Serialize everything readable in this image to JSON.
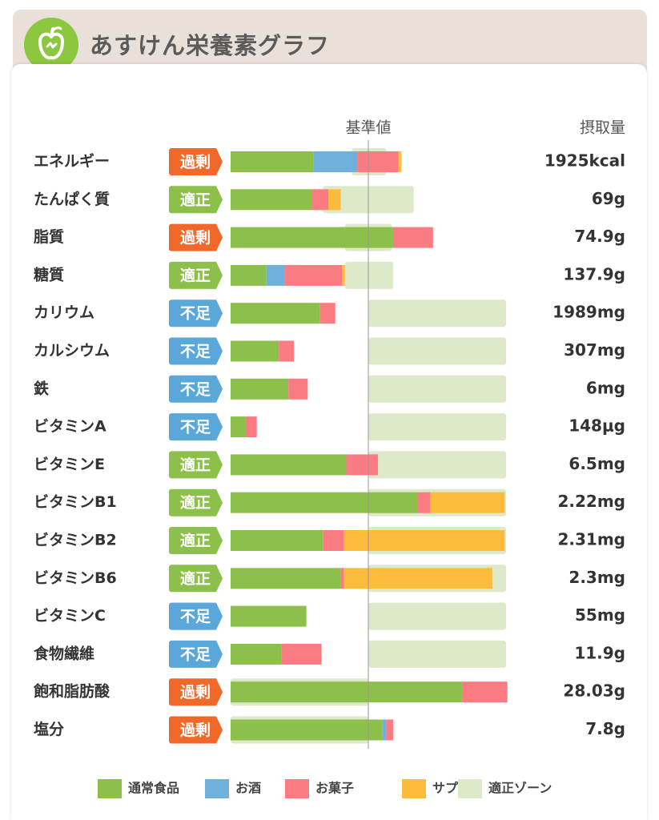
{
  "app": {
    "title": "あすけん栄養素グラフ",
    "logo_icon": "apple-icon"
  },
  "colors": {
    "normal_food": "#8cc04b",
    "alcohol": "#6fb0dc",
    "snacks": "#fa7b82",
    "supplement": "#fbbc3d",
    "zone": "#dde9c9",
    "excess": "#f0682a",
    "adequate": "#8cc04b",
    "deficient": "#5aa7d9"
  },
  "chart_data": {
    "type": "bar",
    "orientation": "horizontal-stacked",
    "title": "あすけん栄養素グラフ",
    "reference_label": "基準値",
    "intake_header": "摂取量",
    "scale_unit": "percent of reference value",
    "reference_value": 100,
    "xlim": [
      0,
      200
    ],
    "legend": [
      {
        "key": "normal_food",
        "label": "通常食品"
      },
      {
        "key": "alcohol",
        "label": "お酒"
      },
      {
        "key": "snacks",
        "label": "お菓子"
      },
      {
        "key": "supplement",
        "label": "サプリ"
      },
      {
        "key": "zone",
        "label": "適正ゾーン"
      }
    ],
    "legend_position": "bottom",
    "nutrients": [
      {
        "name": "エネルギー",
        "status": "過剰",
        "status_key": "excess",
        "intake": "1925kcal",
        "segments": {
          "normal_food": 60,
          "alcohol": 32,
          "snacks": 30,
          "supplement": 2
        },
        "zone": [
          88,
          113
        ]
      },
      {
        "name": "たんぱく質",
        "status": "適正",
        "status_key": "adequate",
        "intake": "69g",
        "segments": {
          "normal_food": 59,
          "alcohol": 0,
          "snacks": 12,
          "supplement": 9
        },
        "zone": [
          67,
          133
        ]
      },
      {
        "name": "脂質",
        "status": "過剰",
        "status_key": "excess",
        "intake": "74.9g",
        "segments": {
          "normal_food": 118,
          "alcohol": 0,
          "snacks": 29,
          "supplement": 0
        },
        "zone": [
          83,
          117
        ]
      },
      {
        "name": "糖質",
        "status": "適正",
        "status_key": "adequate",
        "intake": "137.9g",
        "segments": {
          "normal_food": 26,
          "alcohol": 13,
          "snacks": 42,
          "supplement": 2
        },
        "zone": [
          83,
          118
        ]
      },
      {
        "name": "カリウム",
        "status": "不足",
        "status_key": "deficient",
        "intake": "1989mg",
        "segments": {
          "normal_food": 65,
          "alcohol": 0,
          "snacks": 11,
          "supplement": 0
        },
        "zone": [
          100,
          200
        ]
      },
      {
        "name": "カルシウム",
        "status": "不足",
        "status_key": "deficient",
        "intake": "307mg",
        "segments": {
          "normal_food": 35,
          "alcohol": 0,
          "snacks": 11,
          "supplement": 0
        },
        "zone": [
          100,
          200
        ]
      },
      {
        "name": "鉄",
        "status": "不足",
        "status_key": "deficient",
        "intake": "6mg",
        "segments": {
          "normal_food": 42,
          "alcohol": 0,
          "snacks": 14,
          "supplement": 0
        },
        "zone": [
          100,
          200
        ]
      },
      {
        "name": "ビタミンA",
        "status": "不足",
        "status_key": "deficient",
        "intake": "148μg",
        "segments": {
          "normal_food": 11,
          "alcohol": 0,
          "snacks": 8,
          "supplement": 0
        },
        "zone": [
          100,
          200
        ]
      },
      {
        "name": "ビタミンE",
        "status": "適正",
        "status_key": "adequate",
        "intake": "6.5mg",
        "segments": {
          "normal_food": 84,
          "alcohol": 0,
          "snacks": 23,
          "supplement": 0
        },
        "zone": [
          100,
          200
        ]
      },
      {
        "name": "ビタミンB1",
        "status": "適正",
        "status_key": "adequate",
        "intake": "2.22mg",
        "segments": {
          "normal_food": 136,
          "alcohol": 0,
          "snacks": 9,
          "supplement": 54
        },
        "zone": [
          100,
          200
        ]
      },
      {
        "name": "ビタミンB2",
        "status": "適正",
        "status_key": "adequate",
        "intake": "2.31mg",
        "segments": {
          "normal_food": 67,
          "alcohol": 0,
          "snacks": 15,
          "supplement": 117
        },
        "zone": [
          100,
          200
        ]
      },
      {
        "name": "ビタミンB6",
        "status": "適正",
        "status_key": "adequate",
        "intake": "2.3mg",
        "segments": {
          "normal_food": 80,
          "alcohol": 0,
          "snacks": 2,
          "supplement": 108
        },
        "zone": [
          100,
          200
        ]
      },
      {
        "name": "ビタミンC",
        "status": "不足",
        "status_key": "deficient",
        "intake": "55mg",
        "segments": {
          "normal_food": 55,
          "alcohol": 0,
          "snacks": 0,
          "supplement": 0
        },
        "zone": [
          100,
          200
        ]
      },
      {
        "name": "食物繊維",
        "status": "不足",
        "status_key": "deficient",
        "intake": "11.9g",
        "segments": {
          "normal_food": 37,
          "alcohol": 0,
          "snacks": 29,
          "supplement": 0
        },
        "zone": [
          100,
          200
        ]
      },
      {
        "name": "飽和脂肪酸",
        "status": "過剰",
        "status_key": "excess",
        "intake": "28.03g",
        "segments": {
          "normal_food": 168,
          "alcohol": 0,
          "snacks": 33,
          "supplement": 0
        },
        "zone": [
          0,
          100
        ]
      },
      {
        "name": "塩分",
        "status": "過剰",
        "status_key": "excess",
        "intake": "7.8g",
        "segments": {
          "normal_food": 110,
          "alcohol": 3,
          "snacks": 5,
          "supplement": 0
        },
        "zone": [
          0,
          100
        ]
      }
    ]
  }
}
